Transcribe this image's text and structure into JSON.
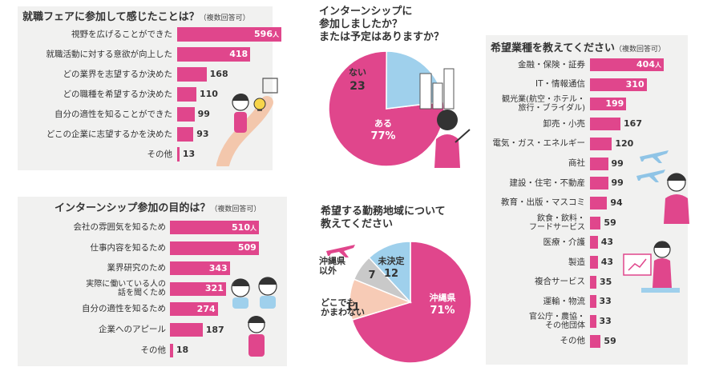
{
  "colors": {
    "bar": "#e0468c",
    "pie_main": "#e0468c",
    "pie_blue": "#9fd0ec",
    "pie_peach": "#f7cbb6",
    "pie_gray": "#c9c9c9",
    "panel_bg": "#f1f1f0"
  },
  "unit": "人",
  "chart_data": [
    {
      "id": "fair",
      "type": "bar",
      "orientation": "horizontal",
      "title": "就職フェアに参加して感じたことは？",
      "note": "（複数回答可）",
      "categories": [
        "視野を広げることができた",
        "就職活動に対する意欲が向上した",
        "どの業界を志望するか決めた",
        "どの職種を希望するか決めた",
        "自分の適性を知ることができた",
        "どこの企業に志望するかを決めた",
        "その他"
      ],
      "values": [
        596,
        418,
        168,
        110,
        99,
        93,
        13
      ],
      "xlim": [
        0,
        596
      ]
    },
    {
      "id": "intern_participation",
      "type": "pie",
      "title": "インターンシップに参加しましたか？または予定はありますか？",
      "title_lines": [
        "インターンシップに",
        "参加しましたか？",
        "または予定はありますか？"
      ],
      "slices": [
        {
          "label": "ある",
          "value": 77,
          "value_text": "77%",
          "color": "#e0468c"
        },
        {
          "label": "ない",
          "value": 23,
          "value_text": "23",
          "color": "#9fd0ec"
        }
      ]
    },
    {
      "id": "industry",
      "type": "bar",
      "orientation": "horizontal",
      "title": "希望業種を教えてください",
      "note": "（複数回答可）",
      "categories": [
        "金融・保険・証券",
        "IT・情報通信",
        "観光業(航空・ホテル・旅行・ブライダル)",
        "卸売・小売",
        "電気・ガス・エネルギー",
        "商社",
        "建設・住宅・不動産",
        "教育・出版・マスコミ",
        "飲食・飲料・フードサービス",
        "医療・介護",
        "製造",
        "複合サービス",
        "運輸・物流",
        "官公庁・農協・その他団体",
        "その他"
      ],
      "category_lines": [
        [
          "金融・保険・証券"
        ],
        [
          "IT・情報通信"
        ],
        [
          "観光業(航空・ホテル・",
          "旅行・ブライダル)"
        ],
        [
          "卸売・小売"
        ],
        [
          "電気・ガス・エネルギー"
        ],
        [
          "商社"
        ],
        [
          "建設・住宅・不動産"
        ],
        [
          "教育・出版・マスコミ"
        ],
        [
          "飲食・飲料・",
          "フードサービス"
        ],
        [
          "医療・介護"
        ],
        [
          "製造"
        ],
        [
          "複合サービス"
        ],
        [
          "運輸・物流"
        ],
        [
          "官公庁・農協・",
          "その他団体"
        ],
        [
          "その他"
        ]
      ],
      "values": [
        404,
        310,
        199,
        167,
        120,
        99,
        99,
        94,
        59,
        43,
        43,
        35,
        33,
        33,
        59
      ],
      "xlim": [
        0,
        404
      ]
    },
    {
      "id": "intern_purpose",
      "type": "bar",
      "orientation": "horizontal",
      "title": "インターンシップ参加の目的は？",
      "note": "（複数回答可）",
      "categories": [
        "会社の雰囲気を知るため",
        "仕事内容を知るため",
        "業界研究のため",
        "実際に働いている人の話を聞くため",
        "自分の適性を知るため",
        "企業へのアピール",
        "その他"
      ],
      "category_lines": [
        [
          "会社の雰囲気を知るため"
        ],
        [
          "仕事内容を知るため"
        ],
        [
          "業界研究のため"
        ],
        [
          "実際に働いている人の",
          "話を聞くため"
        ],
        [
          "自分の適性を知るため"
        ],
        [
          "企業へのアピール"
        ],
        [
          "その他"
        ]
      ],
      "values": [
        510,
        509,
        343,
        321,
        274,
        187,
        18
      ],
      "xlim": [
        0,
        510
      ]
    },
    {
      "id": "work_region",
      "type": "pie",
      "title": "希望する勤務地域について教えてください",
      "title_lines": [
        "希望する勤務地域について",
        "教えてください"
      ],
      "slices": [
        {
          "label": "沖縄県",
          "value": 71,
          "value_text": "71%",
          "color": "#e0468c"
        },
        {
          "label": "どこでもかまわない",
          "label_lines": [
            "どこでも",
            "かまわない"
          ],
          "value": 11,
          "value_text": "11",
          "color": "#f7cbb6"
        },
        {
          "label": "沖縄県以外",
          "label_lines": [
            "沖縄県",
            "以外"
          ],
          "value": 7,
          "value_text": "7",
          "color": "#c9c9c9"
        },
        {
          "label": "未決定",
          "value": 12,
          "value_text": "12",
          "color": "#9fd0ec"
        }
      ]
    }
  ]
}
